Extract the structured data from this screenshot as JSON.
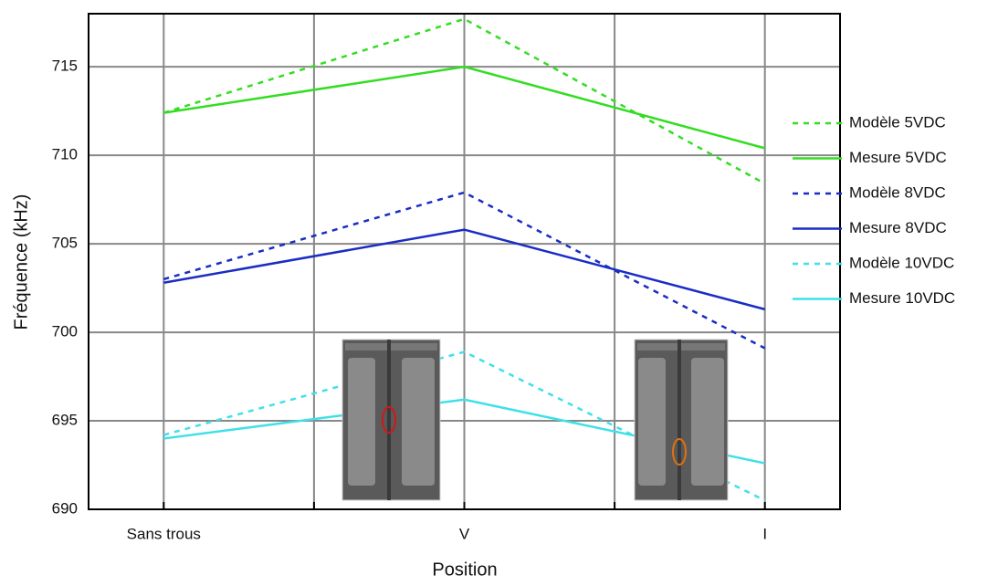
{
  "chart_data": {
    "type": "line",
    "x_label": "Position",
    "y_label": "Fréquence (kHz)",
    "categories": [
      "Sans trous",
      "V",
      "I"
    ],
    "ylim": [
      690,
      718
    ],
    "yticks": [
      690,
      695,
      700,
      705,
      710,
      715
    ],
    "grid": true,
    "legend": "right",
    "series": [
      {
        "name": "Modèle 5VDC",
        "color": "#33dd22",
        "dashed": true,
        "values": [
          712.4,
          717.7,
          708.4
        ]
      },
      {
        "name": "Mesure 5VDC",
        "color": "#33dd22",
        "dashed": false,
        "values": [
          712.4,
          715.0,
          710.4
        ]
      },
      {
        "name": "Modèle 8VDC",
        "color": "#1a2dc4",
        "dashed": true,
        "values": [
          703.0,
          707.9,
          699.1
        ]
      },
      {
        "name": "Mesure 8VDC",
        "color": "#1a2dc4",
        "dashed": false,
        "values": [
          702.8,
          705.8,
          701.3
        ]
      },
      {
        "name": "Modèle 10VDC",
        "color": "#3fe0e8",
        "dashed": true,
        "values": [
          694.2,
          698.9,
          690.5
        ]
      },
      {
        "name": "Mesure 10VDC",
        "color": "#3fe0e8",
        "dashed": false,
        "values": [
          694.0,
          696.2,
          692.6
        ]
      }
    ]
  }
}
